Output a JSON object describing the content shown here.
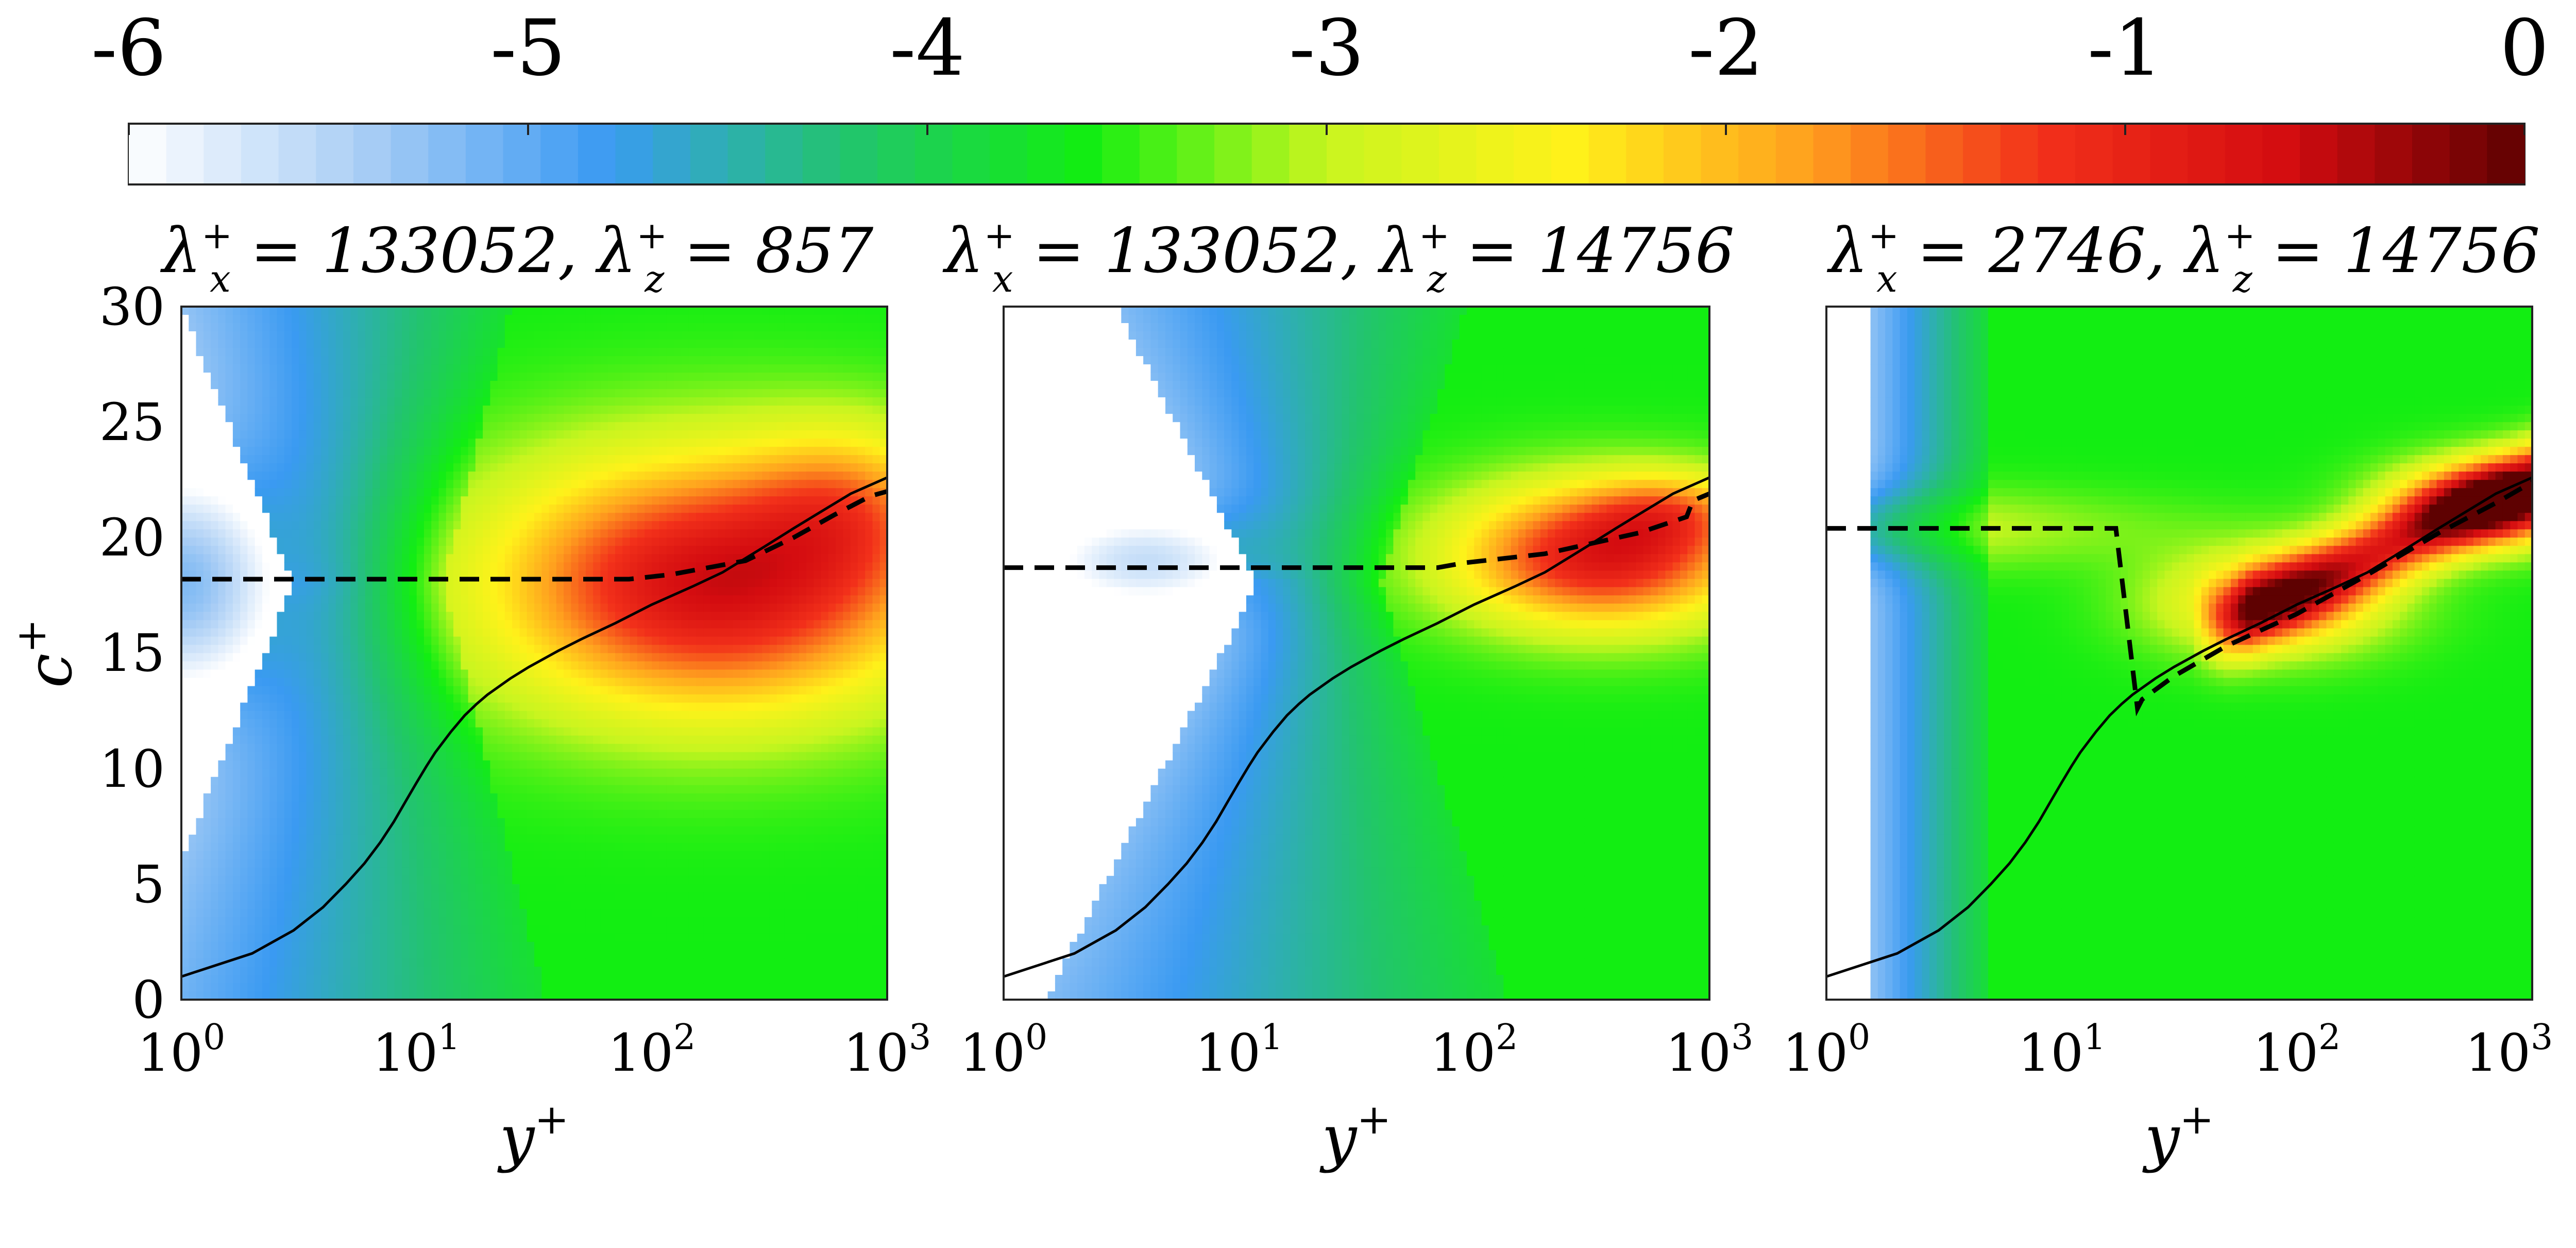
{
  "chart_data": {
    "type": "heatmap",
    "colorbar": {
      "ticks": [
        "-6",
        "-5",
        "-4",
        "-3",
        "-2",
        "-1",
        "0"
      ],
      "range": [
        -6,
        0
      ],
      "colors": [
        "#ffffff",
        "#a8cdf5",
        "#3a9af2",
        "#22c46e",
        "#12ee12",
        "#c8f51f",
        "#fff21a",
        "#ffa01e",
        "#f2301a",
        "#d40c10",
        "#5e0101"
      ]
    },
    "ylabel": "c",
    "ylabel_sup": "+",
    "ylim": [
      0,
      30
    ],
    "yticks": [
      "0",
      "5",
      "10",
      "15",
      "20",
      "25",
      "30"
    ],
    "xlim": [
      1,
      1000
    ],
    "xscale": "log",
    "xlabel": "y",
    "xlabel_sup": "+",
    "xticks": [
      {
        "base": "10",
        "exp": "0"
      },
      {
        "base": "10",
        "exp": "1"
      },
      {
        "base": "10",
        "exp": "2"
      },
      {
        "base": "10",
        "exp": "3"
      }
    ],
    "panels": [
      {
        "lx": "133052",
        "lz": "857",
        "peaks": [
          {
            "x": 180,
            "y": 18,
            "sx": 0.68,
            "sy": 4.0,
            "amp": 3.0
          },
          {
            "x": 700,
            "y": 21.5,
            "sx": 0.3,
            "sy": 2.5,
            "amp": 1.0
          }
        ],
        "band": {
          "start": 3,
          "end": 13,
          "amp": 1.5,
          "fan": 0.04
        },
        "left_blob": {
          "x": 1,
          "y": 18,
          "sx": 0.3,
          "sy": 3.5,
          "amp": 1.6
        },
        "dashed": [
          [
            1,
            18.2
          ],
          [
            20,
            18.2
          ],
          [
            80,
            18.2
          ],
          [
            120,
            18.4
          ],
          [
            250,
            19
          ],
          [
            400,
            20
          ],
          [
            600,
            21
          ],
          [
            850,
            21.8
          ],
          [
            1000,
            22
          ]
        ]
      },
      {
        "lx": "133052",
        "lz": "14756",
        "peaks": [
          {
            "x": 350,
            "y": 19.2,
            "sx": 0.45,
            "sy": 2.2,
            "amp": 2.8
          },
          {
            "x": 700,
            "y": 21.2,
            "sx": 0.25,
            "sy": 1.2,
            "amp": 1.0
          }
        ],
        "band": {
          "start": 12,
          "end": 40,
          "amp": 1.4,
          "fan": 0.05
        },
        "left_blob": {
          "x": 4,
          "y": 19,
          "sx": 0.35,
          "sy": 1.6,
          "amp": 1.2
        },
        "dashed": [
          [
            1,
            18.7
          ],
          [
            60,
            18.7
          ],
          [
            70,
            18.7
          ],
          [
            90,
            18.9
          ],
          [
            200,
            19.3
          ],
          [
            500,
            20.2
          ],
          [
            800,
            20.9
          ],
          [
            850,
            21.6
          ],
          [
            1000,
            21.9
          ]
        ]
      },
      {
        "lx": "2746",
        "lz": "14756",
        "peaks": [
          {
            "x": 700,
            "y": 21.5,
            "sx": 0.3,
            "sy": 1.3,
            "amp": 2.5
          },
          {
            "x": 80,
            "y": 17.2,
            "sx": 0.35,
            "sy": 1.6,
            "amp": 1.6
          }
        ],
        "ridge": {
          "from": [
            50,
            16.4
          ],
          "to": [
            1000,
            22.4
          ],
          "sy": 1.2,
          "amp": 2.4
        },
        "band": {
          "start": 1.5,
          "end": 5,
          "amp": 1.5,
          "fan": 0.0
        },
        "left_blob": {
          "x": 1,
          "y": 20.4,
          "sx": 0.9,
          "sy": 1.2,
          "amp": 0.8
        },
        "dashed": [
          [
            1,
            20.4
          ],
          [
            15,
            20.4
          ],
          [
            17,
            20.4
          ],
          [
            21,
            12.6
          ],
          [
            22,
            13
          ],
          [
            30,
            14
          ],
          [
            50,
            15.3
          ],
          [
            100,
            16.7
          ],
          [
            200,
            18.4
          ],
          [
            400,
            20.2
          ],
          [
            700,
            21.5
          ],
          [
            1000,
            22.4
          ]
        ]
      }
    ],
    "solid_profile": [
      [
        1,
        1
      ],
      [
        2,
        2
      ],
      [
        3,
        3
      ],
      [
        4,
        4
      ],
      [
        5,
        5
      ],
      [
        6,
        5.9
      ],
      [
        7,
        6.8
      ],
      [
        8,
        7.7
      ],
      [
        9,
        8.6
      ],
      [
        10,
        9.4
      ],
      [
        11,
        10.1
      ],
      [
        12,
        10.7
      ],
      [
        14,
        11.6
      ],
      [
        16,
        12.3
      ],
      [
        18,
        12.8
      ],
      [
        20,
        13.2
      ],
      [
        25,
        13.9
      ],
      [
        30,
        14.4
      ],
      [
        40,
        15.1
      ],
      [
        50,
        15.6
      ],
      [
        70,
        16.3
      ],
      [
        100,
        17.1
      ],
      [
        150,
        17.9
      ],
      [
        200,
        18.5
      ],
      [
        300,
        19.6
      ],
      [
        400,
        20.4
      ],
      [
        500,
        21
      ],
      [
        700,
        21.9
      ],
      [
        1000,
        22.6
      ]
    ]
  }
}
